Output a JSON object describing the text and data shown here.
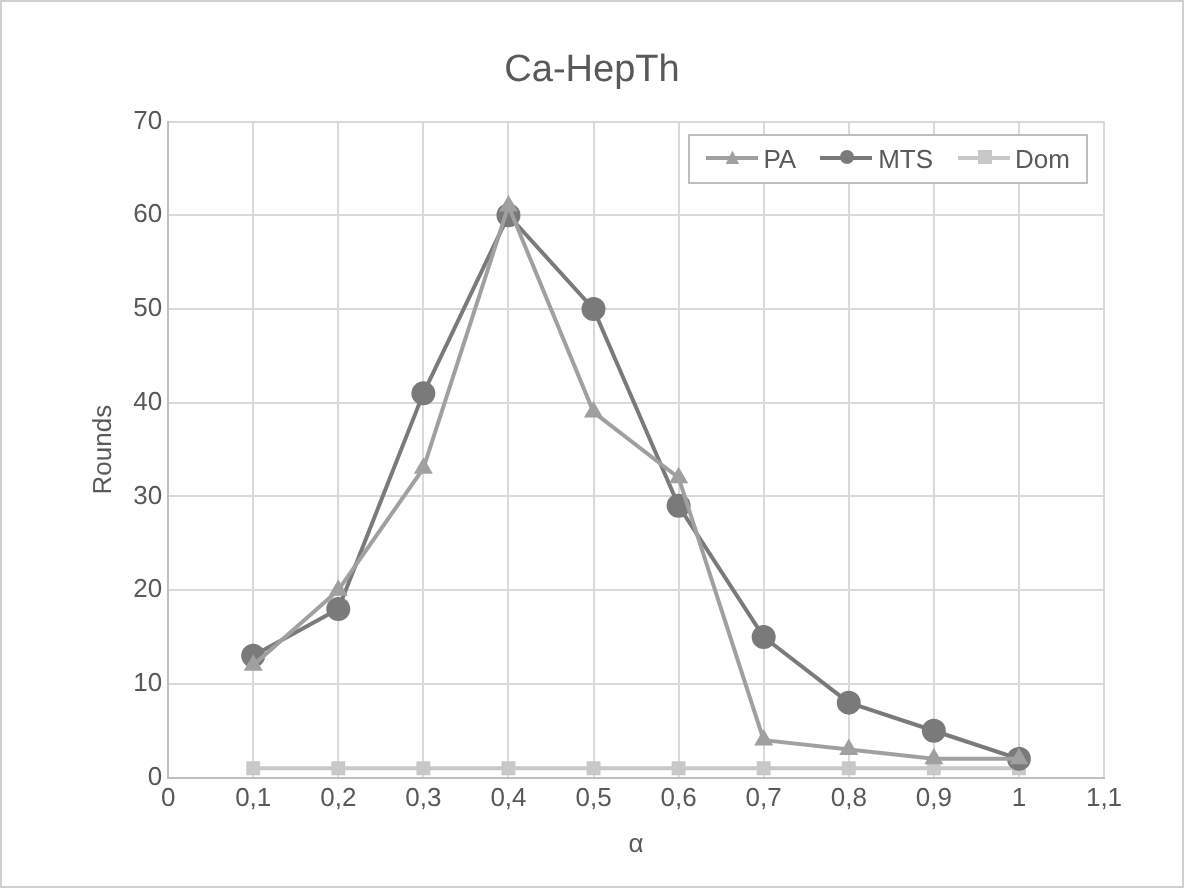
{
  "chart_data": {
    "type": "line",
    "title": "Ca-HepTh",
    "xlabel": "α",
    "ylabel": "Rounds",
    "x": [
      0.1,
      0.2,
      0.3,
      0.4,
      0.5,
      0.6,
      0.7,
      0.8,
      0.9,
      1
    ],
    "series": [
      {
        "name": "PA",
        "color": "#a0a0a0",
        "marker": "triangle",
        "values": [
          12,
          20,
          33,
          61,
          39,
          32,
          4,
          3,
          2,
          2
        ]
      },
      {
        "name": "MTS",
        "color": "#7a7a7a",
        "marker": "circle",
        "values": [
          13,
          18,
          41,
          60,
          50,
          29,
          15,
          8,
          5,
          2
        ]
      },
      {
        "name": "Dom",
        "color": "#c8c8c8",
        "marker": "square",
        "values": [
          1,
          1,
          1,
          1,
          1,
          1,
          1,
          1,
          1,
          1
        ]
      }
    ],
    "xlim": [
      0,
      1.1
    ],
    "xticks": [
      0,
      {
        "value": 0.1,
        "label": "0,1"
      },
      {
        "value": 0.2,
        "label": "0,2"
      },
      {
        "value": 0.3,
        "label": "0,3"
      },
      {
        "value": 0.4,
        "label": "0,4"
      },
      {
        "value": 0.5,
        "label": "0,5"
      },
      {
        "value": 0.6,
        "label": "0,6"
      },
      {
        "value": 0.7,
        "label": "0,7"
      },
      {
        "value": 0.8,
        "label": "0,8"
      },
      {
        "value": 0.9,
        "label": "0,9"
      },
      1,
      {
        "value": 1.1,
        "label": "1,1"
      }
    ],
    "ylim": [
      0,
      70
    ],
    "yticks": [
      0,
      10,
      20,
      30,
      40,
      50,
      60,
      70
    ],
    "grid": true,
    "legend": "top right",
    "line_style": "solid"
  }
}
